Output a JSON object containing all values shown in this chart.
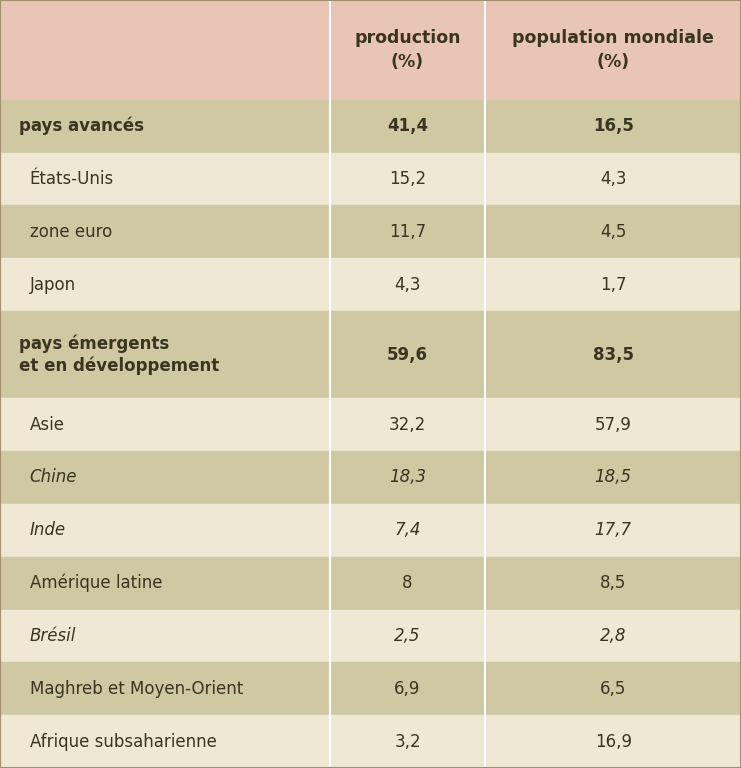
{
  "header_bg": "#e8c5b5",
  "col1_header": "production\n(%)",
  "col2_header": "population mondiale\n(%)",
  "rows": [
    {
      "label": "pays avancés",
      "col1": "41,4",
      "col2": "16,5",
      "bold": true,
      "italic": false,
      "indent": false,
      "bg": "#cfc8a3"
    },
    {
      "label": "États-Unis",
      "col1": "15,2",
      "col2": "4,3",
      "bold": false,
      "italic": false,
      "indent": true,
      "bg": "#eee8d4"
    },
    {
      "label": "zone euro",
      "col1": "11,7",
      "col2": "4,5",
      "bold": false,
      "italic": false,
      "indent": true,
      "bg": "#cfc8a3"
    },
    {
      "label": "Japon",
      "col1": "4,3",
      "col2": "1,7",
      "bold": false,
      "italic": false,
      "indent": true,
      "bg": "#eee8d4"
    },
    {
      "label": "pays émergents\net en développement",
      "col1": "59,6",
      "col2": "83,5",
      "bold": true,
      "italic": false,
      "indent": false,
      "bg": "#cfc8a3"
    },
    {
      "label": "Asie",
      "col1": "32,2",
      "col2": "57,9",
      "bold": false,
      "italic": false,
      "indent": true,
      "bg": "#eee8d4"
    },
    {
      "label": "Chine",
      "col1": "18,3",
      "col2": "18,5",
      "bold": false,
      "italic": true,
      "indent": true,
      "bg": "#cfc8a3"
    },
    {
      "label": "Inde",
      "col1": "7,4",
      "col2": "17,7",
      "bold": false,
      "italic": true,
      "indent": true,
      "bg": "#eee8d4"
    },
    {
      "label": "Amérique latine",
      "col1": "8",
      "col2": "8,5",
      "bold": false,
      "italic": false,
      "indent": true,
      "bg": "#cfc8a3"
    },
    {
      "label": "Brésil",
      "col1": "2,5",
      "col2": "2,8",
      "bold": false,
      "italic": true,
      "indent": true,
      "bg": "#eee8d4"
    },
    {
      "label": "Maghreb et Moyen-Orient",
      "col1": "6,9",
      "col2": "6,5",
      "bold": false,
      "italic": false,
      "indent": true,
      "bg": "#cfc8a3"
    },
    {
      "label": "Afrique subsaharienne",
      "col1": "3,2",
      "col2": "16,9",
      "bold": false,
      "italic": false,
      "indent": true,
      "bg": "#eee8d4"
    }
  ],
  "divider_color": "#ffffff",
  "text_color": "#3a3520",
  "header_fontsize": 12.5,
  "cell_fontsize": 12,
  "fig_width": 7.41,
  "fig_height": 7.68,
  "dpi": 100
}
